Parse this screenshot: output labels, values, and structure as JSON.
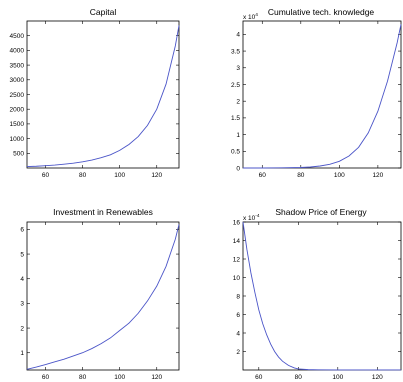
{
  "chart_data": [
    {
      "type": "line",
      "title": "Capital",
      "xlim": [
        50,
        132
      ],
      "ylim": [
        0,
        5000
      ],
      "xticks": [
        60,
        80,
        100,
        120
      ],
      "yticks": [
        500,
        1000,
        1500,
        2000,
        2500,
        3000,
        3500,
        4000,
        4500
      ],
      "exponent": "",
      "grid": false,
      "series": [
        {
          "color": "#4b55c8",
          "x": [
            50,
            55,
            60,
            65,
            70,
            75,
            80,
            85,
            90,
            95,
            100,
            105,
            110,
            115,
            120,
            125,
            130,
            132
          ],
          "y": [
            50,
            60,
            80,
            100,
            130,
            165,
            210,
            270,
            350,
            450,
            600,
            800,
            1070,
            1450,
            2000,
            2850,
            4150,
            4850
          ]
        }
      ]
    },
    {
      "type": "line",
      "title": "Cumulative tech. knowledge",
      "xlim": [
        50,
        132
      ],
      "ylim": [
        0,
        4.4
      ],
      "xticks": [
        60,
        80,
        100,
        120
      ],
      "yticks": [
        0,
        0.5,
        1,
        1.5,
        2,
        2.5,
        3,
        3.5,
        4
      ],
      "exponent": "4",
      "grid": false,
      "series": [
        {
          "color": "#4b55c8",
          "x": [
            50,
            60,
            70,
            80,
            85,
            90,
            95,
            100,
            105,
            110,
            115,
            120,
            125,
            130,
            132
          ],
          "y": [
            0,
            0,
            0.005,
            0.015,
            0.03,
            0.06,
            0.11,
            0.2,
            0.36,
            0.62,
            1.05,
            1.7,
            2.6,
            3.75,
            4.3
          ]
        }
      ]
    },
    {
      "type": "line",
      "title": "Investment in Renewables",
      "xlim": [
        50,
        132
      ],
      "ylim": [
        0.3,
        6.3
      ],
      "xticks": [
        60,
        80,
        100,
        120
      ],
      "yticks": [
        1,
        2,
        3,
        4,
        5,
        6
      ],
      "exponent": "",
      "grid": false,
      "series": [
        {
          "color": "#4b55c8",
          "x": [
            50,
            55,
            60,
            65,
            70,
            75,
            80,
            85,
            90,
            95,
            100,
            105,
            110,
            115,
            120,
            125,
            130,
            132
          ],
          "y": [
            0.33,
            0.42,
            0.52,
            0.63,
            0.74,
            0.87,
            1.0,
            1.17,
            1.37,
            1.6,
            1.9,
            2.2,
            2.6,
            3.1,
            3.7,
            4.5,
            5.6,
            6.2
          ]
        }
      ]
    },
    {
      "type": "line",
      "title": "Shadow Price of Energy",
      "xlim": [
        52,
        132
      ],
      "ylim": [
        0,
        16
      ],
      "xticks": [
        60,
        80,
        100,
        120
      ],
      "yticks": [
        2,
        4,
        6,
        8,
        10,
        12,
        14,
        16
      ],
      "exponent": "-4",
      "grid": false,
      "series": [
        {
          "color": "#4b55c8",
          "x": [
            52,
            54,
            56,
            58,
            60,
            62,
            64,
            66,
            68,
            70,
            72,
            75,
            78,
            80,
            85,
            90,
            100,
            110,
            120,
            132
          ],
          "y": [
            16,
            13,
            10.5,
            8.4,
            6.5,
            5.0,
            3.8,
            2.8,
            2.0,
            1.4,
            0.95,
            0.5,
            0.22,
            0.12,
            0.04,
            0.02,
            0.01,
            0.01,
            0.01,
            0.01
          ]
        }
      ]
    }
  ]
}
